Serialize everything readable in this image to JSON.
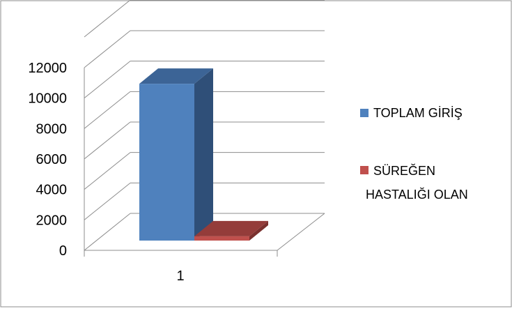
{
  "chart_data": {
    "type": "bar",
    "categories": [
      "1"
    ],
    "series": [
      {
        "name": "TOPLAM GİRİŞ",
        "values": [
          10300
        ]
      },
      {
        "name": "SÜREĞEN HASTALIĞI OLAN",
        "values": [
          280
        ]
      }
    ],
    "yticks": [
      "0",
      "2000",
      "4000",
      "6000",
      "8000",
      "10000",
      "12000"
    ],
    "ylim": [
      0,
      12000
    ],
    "grid": true,
    "legend_position": "right",
    "three_d": true
  },
  "legend": {
    "items": [
      {
        "label_lines": [
          "TOPLAM GİRİŞ"
        ],
        "color": "#4f81bd"
      },
      {
        "label_lines": [
          "SÜREĞEN",
          "HASTALIĞI OLAN"
        ],
        "color": "#c0504d"
      }
    ]
  },
  "xaxis": {
    "tick_label": "1"
  }
}
